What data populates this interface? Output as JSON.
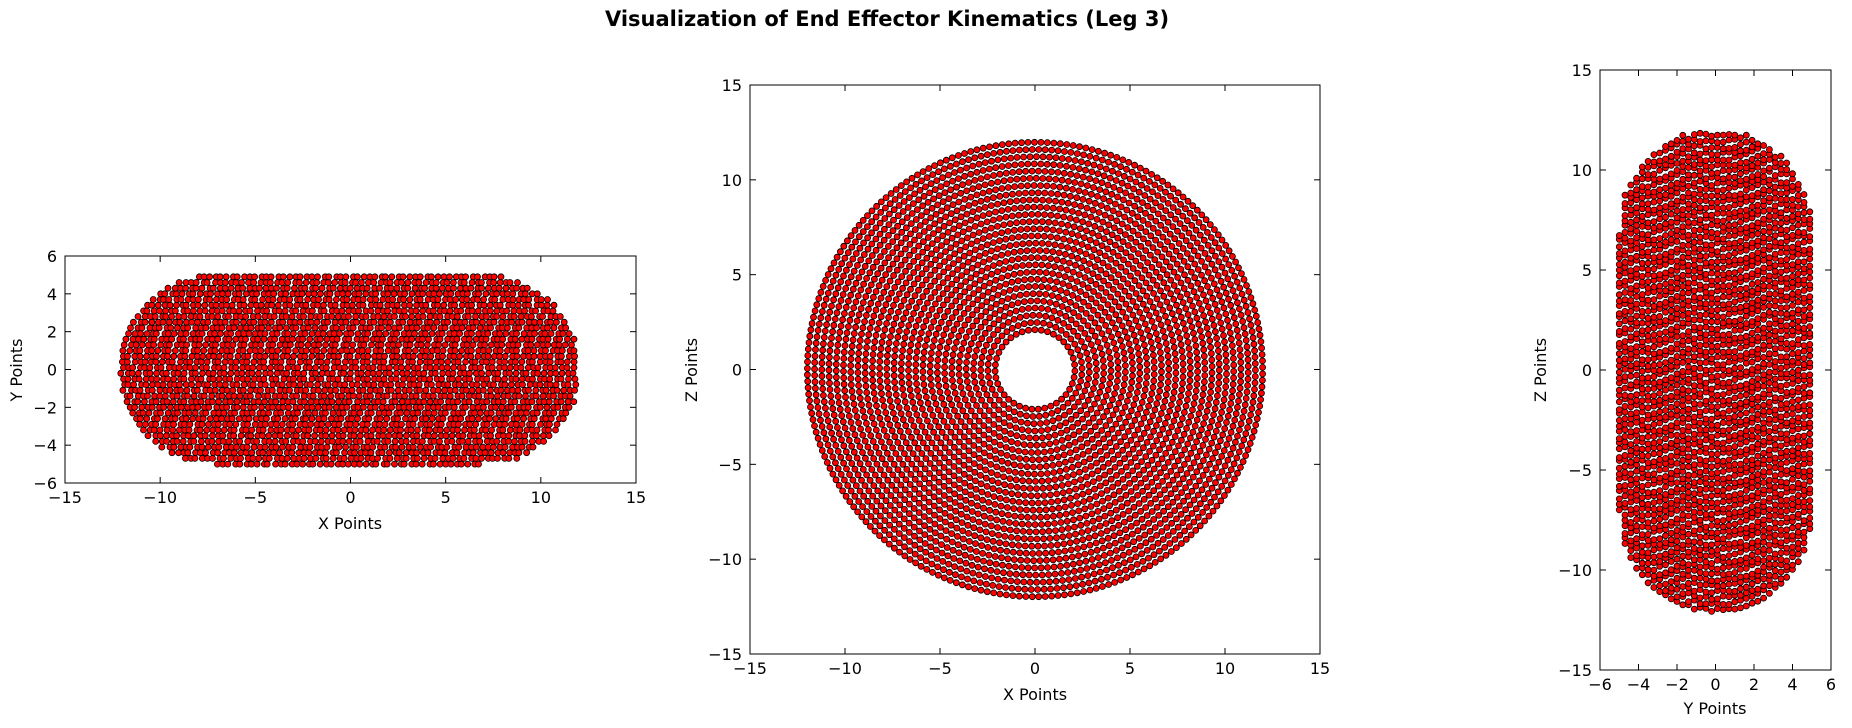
{
  "figure": {
    "title": "Visualization of End Effector Kinematics (Leg 3)"
  },
  "colors": {
    "marker_fill": "#ff0000",
    "marker_edge": "#000000",
    "background": "#ffffff",
    "axis": "#000000"
  },
  "chart_data": [
    {
      "type": "scatter",
      "title": "",
      "xlabel": "X Points",
      "ylabel": "Y Points",
      "xlim": [
        -15,
        15
      ],
      "ylim": [
        -6,
        6
      ],
      "xticks": [
        -15,
        -10,
        -5,
        0,
        5,
        10,
        15
      ],
      "yticks": [
        -6,
        -4,
        -2,
        0,
        2,
        4,
        6
      ],
      "xtick_labels": [
        "−15",
        "−10",
        "−5",
        "0",
        "5",
        "10",
        "15"
      ],
      "ytick_labels": [
        "−6",
        "−4",
        "−2",
        "0",
        "2",
        "4",
        "6"
      ],
      "grid": false,
      "marker": "o",
      "point_cloud": "torus projection onto X-Y plane: x in [-12, 12], y in [-5, 5], semicircular ends of radius 5 centered at x = ±7"
    },
    {
      "type": "scatter",
      "title": "",
      "xlabel": "X Points",
      "ylabel": "Z Points",
      "xlim": [
        -15,
        15
      ],
      "ylim": [
        -15,
        15
      ],
      "xticks": [
        -15,
        -10,
        -5,
        0,
        5,
        10,
        15
      ],
      "yticks": [
        -15,
        -10,
        -5,
        0,
        5,
        10,
        15
      ],
      "xtick_labels": [
        "−15",
        "−10",
        "−5",
        "0",
        "5",
        "10",
        "15"
      ],
      "ytick_labels": [
        "−15",
        "−10",
        "−5",
        "0",
        "5",
        "10",
        "15"
      ],
      "grid": false,
      "marker": "o",
      "point_cloud": "annulus in X-Z plane: inner radius 2, outer radius 12, centered at origin"
    },
    {
      "type": "scatter",
      "title": "",
      "xlabel": "Y Points",
      "ylabel": "Z Points",
      "xlim": [
        -6,
        6
      ],
      "ylim": [
        -15,
        15
      ],
      "xticks": [
        -6,
        -4,
        -2,
        0,
        2,
        4,
        6
      ],
      "yticks": [
        -15,
        -10,
        -5,
        0,
        5,
        10,
        15
      ],
      "xtick_labels": [
        "−6",
        "−4",
        "−2",
        "0",
        "2",
        "4",
        "6"
      ],
      "ytick_labels": [
        "−15",
        "−10",
        "−5",
        "0",
        "5",
        "10",
        "15"
      ],
      "grid": false,
      "marker": "o",
      "point_cloud": "torus projection onto Y-Z plane: y in [-5, 5], z in [-12, 12], semicircular ends of radius 5 centered at z = ±7"
    }
  ]
}
